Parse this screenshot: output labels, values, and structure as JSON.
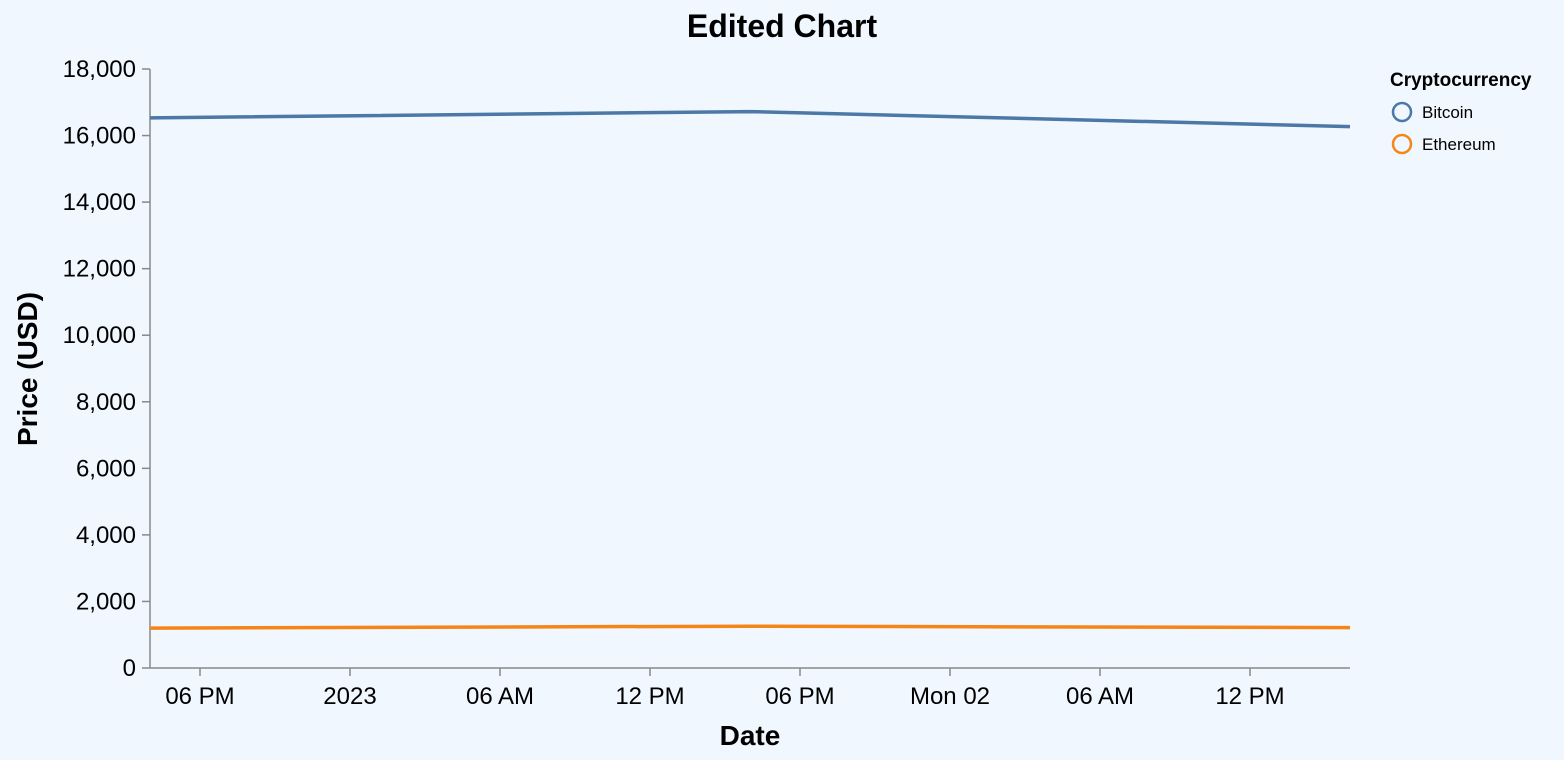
{
  "chart_data": {
    "type": "line",
    "title": "Edited Chart",
    "xlabel": "Date",
    "ylabel": "Price (USD)",
    "x_domain": [
      "2022-12-31T16:00",
      "2023-01-02T16:00"
    ],
    "ylim": [
      0,
      18000
    ],
    "x_ticks": [
      {
        "t": "2022-12-31T18:00",
        "label": "06 PM"
      },
      {
        "t": "2023-01-01T00:00",
        "label": "2023"
      },
      {
        "t": "2023-01-01T06:00",
        "label": "06 AM"
      },
      {
        "t": "2023-01-01T12:00",
        "label": "12 PM"
      },
      {
        "t": "2023-01-01T18:00",
        "label": "06 PM"
      },
      {
        "t": "2023-01-02T00:00",
        "label": "Mon 02"
      },
      {
        "t": "2023-01-02T06:00",
        "label": "06 AM"
      },
      {
        "t": "2023-01-02T12:00",
        "label": "12 PM"
      }
    ],
    "y_ticks": [
      {
        "v": 0,
        "label": "0"
      },
      {
        "v": 2000,
        "label": "2,000"
      },
      {
        "v": 4000,
        "label": "4,000"
      },
      {
        "v": 6000,
        "label": "6,000"
      },
      {
        "v": 8000,
        "label": "8,000"
      },
      {
        "v": 10000,
        "label": "10,000"
      },
      {
        "v": 12000,
        "label": "12,000"
      },
      {
        "v": 14000,
        "label": "14,000"
      },
      {
        "v": 16000,
        "label": "16,000"
      },
      {
        "v": 18000,
        "label": "18,000"
      }
    ],
    "legend": {
      "title": "Cryptocurrency",
      "position": "top-right"
    },
    "grid": false,
    "series": [
      {
        "name": "Bitcoin",
        "color": "#4c78a8",
        "points": [
          {
            "x": "2022-12-31T16:00",
            "y": 16530
          },
          {
            "x": "2023-01-01T16:00",
            "y": 16720
          },
          {
            "x": "2023-01-02T16:00",
            "y": 16270
          }
        ]
      },
      {
        "name": "Ethereum",
        "color": "#f58518",
        "points": [
          {
            "x": "2022-12-31T16:00",
            "y": 1200
          },
          {
            "x": "2023-01-01T16:00",
            "y": 1255
          },
          {
            "x": "2023-01-02T16:00",
            "y": 1215
          }
        ]
      }
    ]
  }
}
